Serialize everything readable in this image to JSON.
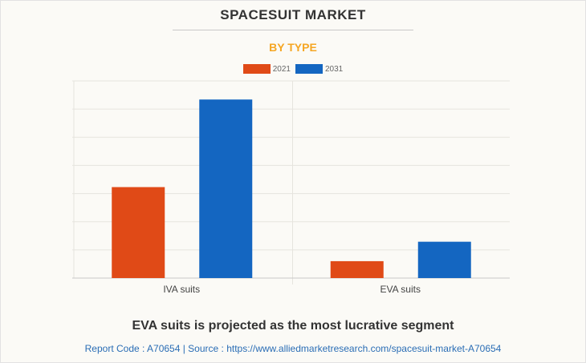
{
  "title": "SPACESUIT MARKET",
  "subtitle": "BY TYPE",
  "takeaway": "EVA suits is projected as the most lucrative segment",
  "source": "Report Code : A70654  |  Source : https://www.alliedmarketresearch.com/spacesuit-market-A70654",
  "chart_data": {
    "type": "bar",
    "title": "SPACESUIT MARKET",
    "subtitle": "BY TYPE",
    "categories": [
      "IVA suits",
      "EVA suits"
    ],
    "series": [
      {
        "name": "2021",
        "color": "#e04a17",
        "values": [
          3.23,
          0.6
        ]
      },
      {
        "name": "2031",
        "color": "#1466c1",
        "values": [
          6.34,
          1.29
        ]
      }
    ],
    "ylim": [
      0,
      7
    ],
    "y_units": "relative (gridline units, no axis labels shown)",
    "grid": true,
    "legend": "top-center",
    "xlabel": "",
    "ylabel": ""
  }
}
